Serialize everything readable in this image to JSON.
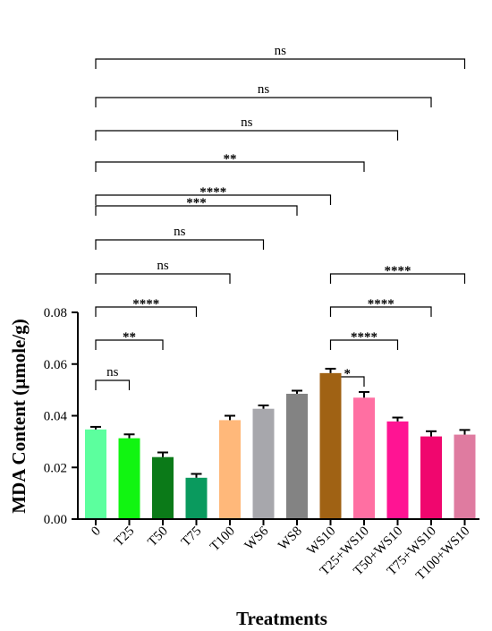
{
  "chart_data": {
    "type": "bar",
    "xlabel": "Treatments",
    "ylabel": "MDA Content (µmole/g)",
    "ylim": [
      0,
      0.08
    ],
    "yticks": [
      "0.00",
      "0.02",
      "0.04",
      "0.06",
      "0.08"
    ],
    "categories": [
      "0",
      "T25",
      "T50",
      "T75",
      "T100",
      "WS6",
      "WS8",
      "WS10",
      "T25+WS10",
      "T50+WS10",
      "T75+WS10",
      "T100+WS10"
    ],
    "values": [
      0.0347,
      0.0313,
      0.024,
      0.016,
      0.0383,
      0.0427,
      0.0485,
      0.0565,
      0.047,
      0.0378,
      0.032,
      0.0327
    ],
    "errors": [
      0.001,
      0.0015,
      0.0018,
      0.0015,
      0.0017,
      0.0013,
      0.0012,
      0.0017,
      0.0022,
      0.0015,
      0.002,
      0.0018
    ],
    "colors": [
      "#5CFF9E",
      "#11F511",
      "#0B7A18",
      "#0A9A5E",
      "#FFB87A",
      "#A7A7AC",
      "#838383",
      "#A06214",
      "#FF6FA2",
      "#FF1493",
      "#F0066E",
      "#DF7BA0"
    ],
    "significance": [
      {
        "from": 0,
        "to": 1,
        "label": "ns"
      },
      {
        "from": 0,
        "to": 2,
        "label": "**"
      },
      {
        "from": 0,
        "to": 3,
        "label": "****"
      },
      {
        "from": 0,
        "to": 4,
        "label": "ns"
      },
      {
        "from": 0,
        "to": 5,
        "label": "ns"
      },
      {
        "from": 0,
        "to": 6,
        "label": "***"
      },
      {
        "from": 0,
        "to": 7,
        "label": "****"
      },
      {
        "from": 0,
        "to": 8,
        "label": "**"
      },
      {
        "from": 0,
        "to": 9,
        "label": "ns"
      },
      {
        "from": 0,
        "to": 10,
        "label": "ns"
      },
      {
        "from": 0,
        "to": 11,
        "label": "ns"
      },
      {
        "from": 7,
        "to": 8,
        "label": "*"
      },
      {
        "from": 7,
        "to": 9,
        "label": "****"
      },
      {
        "from": 7,
        "to": 10,
        "label": "****"
      },
      {
        "from": 7,
        "to": 11,
        "label": "****"
      }
    ]
  }
}
